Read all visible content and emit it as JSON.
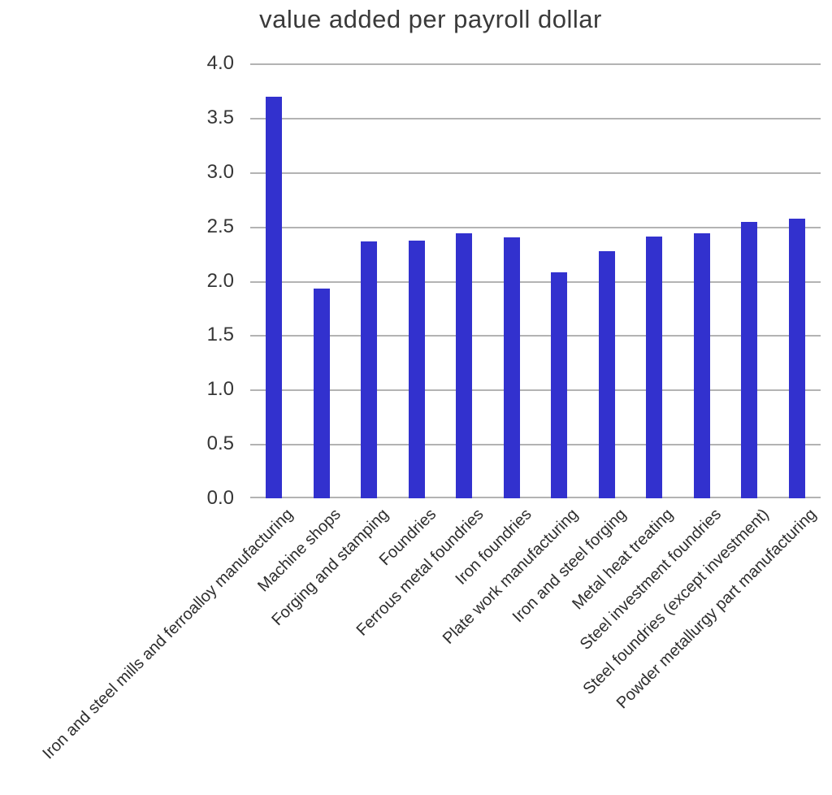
{
  "page": {
    "background": "#ffffff"
  },
  "chart_data": {
    "type": "bar",
    "title": "value added per payroll dollar",
    "categories": [
      "Iron and steel mills and ferroalloy manufacturing",
      "Machine shops",
      "Forging and stamping",
      "Foundries",
      "Ferrous metal foundries",
      "Iron foundries",
      "Plate work manufacturing",
      "Iron and steel forging",
      "Metal heat treating",
      "Steel investment foundries",
      "Steel foundries (except investment)",
      "Powder metallurgy part manufacturing"
    ],
    "values": [
      3.69,
      1.93,
      2.36,
      2.37,
      2.44,
      2.4,
      2.08,
      2.27,
      2.41,
      2.44,
      2.54,
      2.57
    ],
    "xlabel": "",
    "ylabel": "",
    "ylim": [
      0.0,
      4.0
    ],
    "ytick_step": 0.5,
    "yticks": [
      "4.0",
      "3.5",
      "3.0",
      "2.5",
      "2.0",
      "1.5",
      "1.0",
      "0.5",
      "0.0"
    ],
    "grid": "horizontal",
    "legend": "none",
    "x_label_rotation_deg": 45,
    "colors": {
      "bar": "#3231ce",
      "gridline": "#b3b3b3",
      "title_text": "#3a3a3a",
      "tick_text": "#363636",
      "category_text": "#2e2e2e"
    }
  }
}
